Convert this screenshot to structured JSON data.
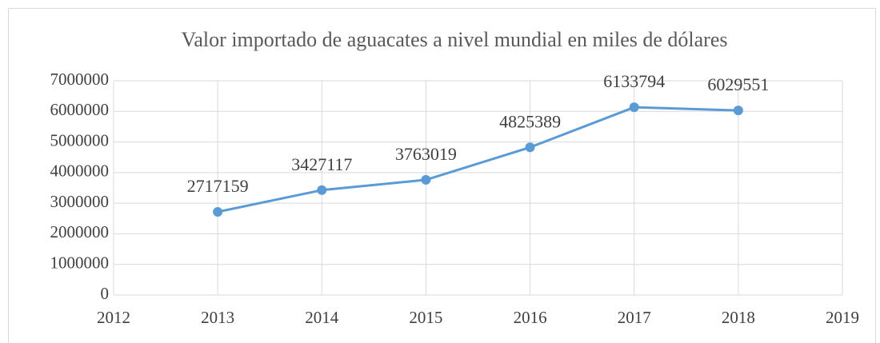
{
  "chart_data": {
    "type": "line",
    "title": "Valor importado de aguacates a nivel mundial en miles de dólares",
    "x": [
      2013,
      2014,
      2015,
      2016,
      2017,
      2018
    ],
    "values": [
      2717159,
      3427117,
      3763019,
      4825389,
      6133794,
      6029551
    ],
    "color": "#5b9bd5",
    "xlim": [
      2012,
      2019
    ],
    "xticks": [
      2012,
      2013,
      2014,
      2015,
      2016,
      2017,
      2018,
      2019
    ],
    "ylim": [
      0,
      7000000
    ],
    "yticks": [
      0,
      1000000,
      2000000,
      3000000,
      4000000,
      5000000,
      6000000,
      7000000
    ],
    "grid": true,
    "data_labels": true
  }
}
